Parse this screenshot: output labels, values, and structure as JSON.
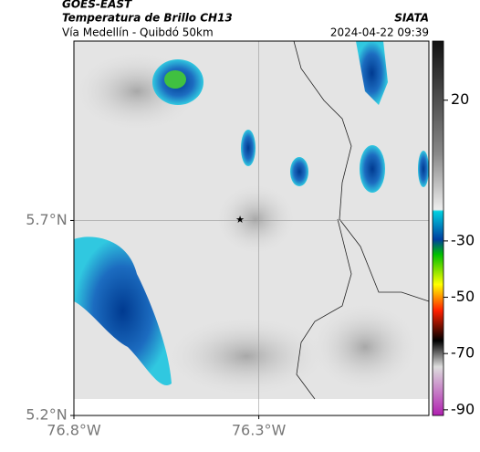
{
  "header": {
    "satellite": "GOES-EAST",
    "title": "Temperatura de Brillo CH13",
    "subtitle": "Vía Medellín - Quibdó 50km",
    "source": "SIATA",
    "datetime": "2024-04-22 09:39"
  },
  "map": {
    "xlim": [
      -76.8,
      -75.84
    ],
    "ylim": [
      5.2,
      6.16
    ],
    "xticks": [
      {
        "value": -76.8,
        "label": "76.8°W"
      },
      {
        "value": -76.3,
        "label": "76.3°W"
      }
    ],
    "yticks": [
      {
        "value": 5.7,
        "label": "5.7°N"
      },
      {
        "value": 5.2,
        "label": "5.2°N"
      }
    ],
    "grid": true
  },
  "colorbar": {
    "lim": [
      -92,
      41
    ],
    "ticks": [
      20,
      -30,
      -50,
      -70,
      -90
    ]
  }
}
